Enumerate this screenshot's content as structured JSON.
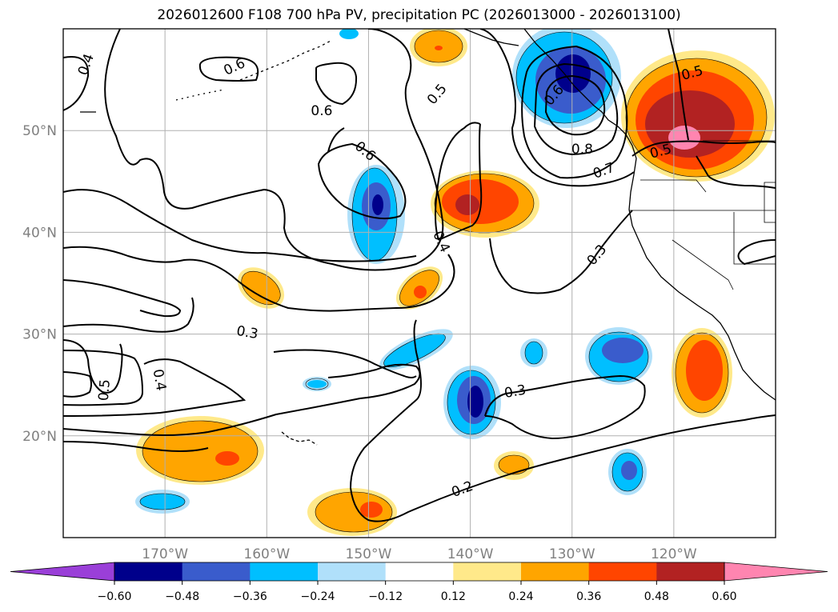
{
  "title": "2026012600 F108 700 hPa PV, precipitation PC (2026013000 - 2026013100)",
  "map": {
    "projection": "PlateCarree",
    "lon_range": [
      -180,
      -110
    ],
    "lat_range": [
      10,
      60
    ],
    "lon_ticks": [
      {
        "value": -170,
        "label": "170°W"
      },
      {
        "value": -160,
        "label": "160°W"
      },
      {
        "value": -150,
        "label": "150°W"
      },
      {
        "value": -140,
        "label": "140°W"
      },
      {
        "value": -130,
        "label": "130°W"
      },
      {
        "value": -120,
        "label": "120°W"
      }
    ],
    "lat_ticks": [
      {
        "value": 20,
        "label": "20°N"
      },
      {
        "value": 30,
        "label": "30°N"
      },
      {
        "value": 40,
        "label": "40°N"
      },
      {
        "value": 50,
        "label": "50°N"
      }
    ],
    "gridlines": true,
    "tick_color": "#808080"
  },
  "colorbar": {
    "levels": [
      "−0.60",
      "−0.48",
      "−0.36",
      "−0.24",
      "−0.12",
      "0.12",
      "0.24",
      "0.36",
      "0.48",
      "0.60"
    ],
    "colors": [
      "#9a3fd8",
      "#00008b",
      "#3a5ccc",
      "#00bfff",
      "#b0e0fa",
      "#ffffff",
      "#ffe98a",
      "#ffa500",
      "#ff4500",
      "#b22222",
      "#ff85b0"
    ],
    "extend": "both"
  },
  "contour_labels": [
    {
      "text": "0.4",
      "lon": -177.8,
      "lat": 56.5,
      "rot": -70
    },
    {
      "text": "0.6",
      "lon": -163.2,
      "lat": 56.3,
      "rot": -25
    },
    {
      "text": "0.6",
      "lon": -154.6,
      "lat": 52.0,
      "rot": 0
    },
    {
      "text": "0.5",
      "lon": -143.3,
      "lat": 53.6,
      "rot": -50
    },
    {
      "text": "0.6",
      "lon": -150.3,
      "lat": 48.0,
      "rot": 40
    },
    {
      "text": "0.4",
      "lon": -142.8,
      "lat": 39.1,
      "rot": 65
    },
    {
      "text": "0.6",
      "lon": -131.8,
      "lat": 53.5,
      "rot": -50
    },
    {
      "text": "0.8",
      "lon": -129.0,
      "lat": 48.2,
      "rot": 0
    },
    {
      "text": "0.7",
      "lon": -126.9,
      "lat": 46.1,
      "rot": -20
    },
    {
      "text": "0.5",
      "lon": -121.3,
      "lat": 48.0,
      "rot": -15
    },
    {
      "text": "0.5",
      "lon": -118.2,
      "lat": 55.7,
      "rot": -15
    },
    {
      "text": "0.3",
      "lon": -127.6,
      "lat": 37.8,
      "rot": -50
    },
    {
      "text": "0.3",
      "lon": -161.9,
      "lat": 30.2,
      "rot": 10
    },
    {
      "text": "0.5",
      "lon": -176.0,
      "lat": 24.5,
      "rot": -85
    },
    {
      "text": "0.4",
      "lon": -170.5,
      "lat": 25.5,
      "rot": 80
    },
    {
      "text": "0.3",
      "lon": -135.6,
      "lat": 24.4,
      "rot": -10
    },
    {
      "text": "0.2",
      "lon": -140.8,
      "lat": 14.8,
      "rot": -20
    }
  ]
}
